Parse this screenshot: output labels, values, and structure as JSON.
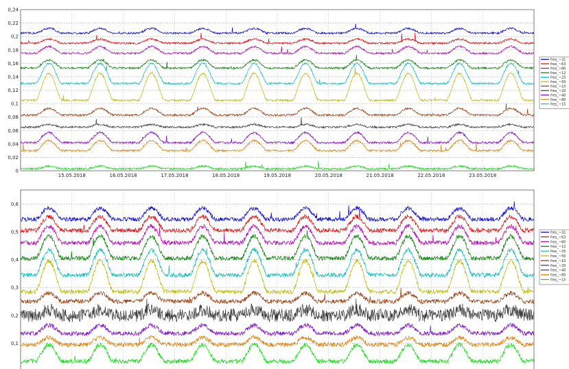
{
  "chart_data": [
    {
      "type": "line",
      "title": "",
      "xlabel": "",
      "ylabel": "",
      "ylim": [
        0,
        0.24
      ],
      "yticks": [
        0,
        0.02,
        0.04,
        0.06,
        0.08,
        0.1,
        0.12,
        0.14,
        0.16,
        0.18,
        0.2,
        0.22,
        0.24
      ],
      "ytick_labels": [
        "0",
        "0,02",
        "0,04",
        "0,06",
        "0,08",
        "0,1",
        "0,12",
        "0,14",
        "0,16",
        "0,18",
        "0,2",
        "0,22",
        "0,24"
      ],
      "xlim": [
        "14.05.2018",
        "24.05.2018"
      ],
      "x_tick_labels": [
        "15.05.2018",
        "16.05.2018",
        "17.05.2018",
        "18.05.2018",
        "19.05.2018",
        "20.05.2018",
        "21.05.2018",
        "22.05.2018",
        "23.05.2018"
      ],
      "grid": true,
      "legend_position": "right",
      "series": [
        {
          "name": "fres_~31",
          "color": "#0000cc",
          "baseline": 0.205,
          "daily_amplitude": 0.007
        },
        {
          "name": "fres_~63",
          "color": "#e00000",
          "baseline": 0.19,
          "daily_amplitude": 0.006
        },
        {
          "name": "fres_~80",
          "color": "#b000b0",
          "baseline": 0.175,
          "daily_amplitude": 0.01
        },
        {
          "name": "fres_~12",
          "color": "#007a00",
          "baseline": 0.153,
          "daily_amplitude": 0.012
        },
        {
          "name": "fres_~25",
          "color": "#00b8b8",
          "baseline": 0.13,
          "daily_amplitude": 0.03
        },
        {
          "name": "fres_~50",
          "color": "#b8b800",
          "baseline": 0.105,
          "daily_amplitude": 0.04
        },
        {
          "name": "fres_~10",
          "color": "#993300",
          "baseline": 0.083,
          "daily_amplitude": 0.01
        },
        {
          "name": "fres_~20",
          "color": "#333333",
          "baseline": 0.065,
          "daily_amplitude": 0.004
        },
        {
          "name": "fres_~40",
          "color": "#7a00cc",
          "baseline": 0.042,
          "daily_amplitude": 0.015
        },
        {
          "name": "fres_~80",
          "color": "#e07a00",
          "baseline": 0.03,
          "daily_amplitude": 0.015
        },
        {
          "name": "fres_~15",
          "color": "#00e000",
          "baseline": 0.003,
          "daily_amplitude": 0.004
        }
      ]
    },
    {
      "type": "line",
      "title": "",
      "xlabel": "",
      "ylabel": "",
      "ylim": [
        0,
        0.65
      ],
      "yticks": [
        0,
        0.1,
        0.2,
        0.3,
        0.4,
        0.5,
        0.6
      ],
      "ytick_labels": [
        "0",
        "0,1",
        "0,2",
        "0,3",
        "0,4",
        "0,5",
        "0,6"
      ],
      "xlim": [
        "14.05.2018",
        "24.05.2018"
      ],
      "x_tick_labels": [
        "15.05.2018",
        "16.05.2018",
        "17.05.2018",
        "18.05.2018",
        "19.05.2018",
        "20.05.2018",
        "21.05.2018",
        "22.05.2018",
        "23.05.2018"
      ],
      "grid": true,
      "legend_position": "right",
      "series": [
        {
          "name": "fres_~31",
          "color": "#0000cc",
          "baseline": 0.545,
          "daily_amplitude": 0.04
        },
        {
          "name": "fres_~63",
          "color": "#e00000",
          "baseline": 0.505,
          "daily_amplitude": 0.05
        },
        {
          "name": "fres_~80",
          "color": "#b000b0",
          "baseline": 0.46,
          "daily_amplitude": 0.06
        },
        {
          "name": "fres_~12",
          "color": "#007a00",
          "baseline": 0.405,
          "daily_amplitude": 0.08
        },
        {
          "name": "fres_~25",
          "color": "#00b8b8",
          "baseline": 0.345,
          "daily_amplitude": 0.09
        },
        {
          "name": "fres_~50",
          "color": "#b8b800",
          "baseline": 0.285,
          "daily_amplitude": 0.11
        },
        {
          "name": "fres_~10",
          "color": "#993300",
          "baseline": 0.25,
          "daily_amplitude": 0.03
        },
        {
          "name": "fres_~20",
          "color": "#333333",
          "baseline": 0.2,
          "daily_amplitude": 0.02
        },
        {
          "name": "fres_~40",
          "color": "#7a00cc",
          "baseline": 0.135,
          "daily_amplitude": 0.03
        },
        {
          "name": "fres_~80",
          "color": "#e07a00",
          "baseline": 0.095,
          "daily_amplitude": 0.025
        },
        {
          "name": "fres_~15",
          "color": "#00e000",
          "baseline": 0.035,
          "daily_amplitude": 0.06
        }
      ]
    }
  ]
}
